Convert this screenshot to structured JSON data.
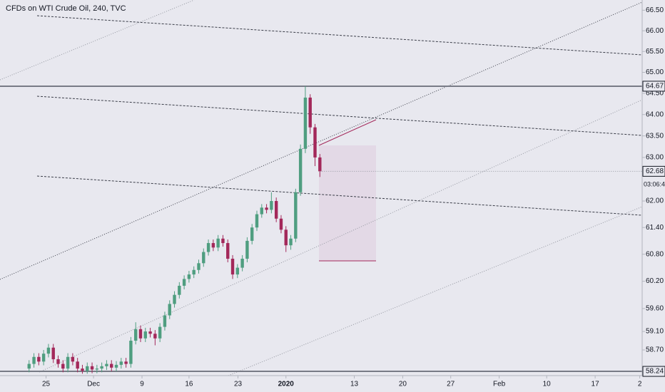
{
  "chart_data": {
    "type": "candlestick",
    "title": "CFDs on WTI Crude Oil, 240, TVC",
    "log_scale": true,
    "grid": false,
    "up_color": "#4f9e80",
    "down_color": "#a3285a",
    "xlim": [
      0,
      132.5
    ],
    "ylim": [
      58.18,
      66.75
    ],
    "xticks": [
      {
        "value": 9.5,
        "label": "25"
      },
      {
        "value": 19.3,
        "label": "Dec"
      },
      {
        "value": 29.3,
        "label": "9"
      },
      {
        "value": 39,
        "label": "16"
      },
      {
        "value": 49.1,
        "label": "23"
      },
      {
        "value": 59,
        "label": "2020"
      },
      {
        "value": 73.1,
        "label": "13"
      },
      {
        "value": 83.1,
        "label": "20"
      },
      {
        "value": 93,
        "label": "27"
      },
      {
        "value": 103,
        "label": "Feb"
      },
      {
        "value": 112.8,
        "label": "10"
      },
      {
        "value": 122.8,
        "label": "17"
      },
      {
        "value": 132,
        "label": "2"
      }
    ],
    "yticks": [
      {
        "value": 66.5,
        "label": "66.50"
      },
      {
        "value": 66,
        "label": "66.00"
      },
      {
        "value": 65.5,
        "label": "65.50"
      },
      {
        "value": 65,
        "label": "65.00"
      },
      {
        "value": 64.5,
        "label": "64.50"
      },
      {
        "value": 64,
        "label": "64.00"
      },
      {
        "value": 63.5,
        "label": "63.50"
      },
      {
        "value": 63,
        "label": "63.00"
      },
      {
        "value": 62,
        "label": "62.00"
      },
      {
        "value": 61.4,
        "label": "61.40"
      },
      {
        "value": 60.8,
        "label": "60.80"
      },
      {
        "value": 60.2,
        "label": "60.20"
      },
      {
        "value": 59.6,
        "label": "59.60"
      },
      {
        "value": 59.1,
        "label": "59.10"
      },
      {
        "value": 58.7,
        "label": "58.70"
      }
    ],
    "hlines": [
      64.67,
      58.24
    ],
    "hline_color": "#787b86",
    "countdown": "03:06:45",
    "x": [
      6,
      7,
      8,
      9,
      10,
      11,
      12,
      13,
      14,
      15,
      16,
      17,
      18,
      19,
      20,
      21,
      22,
      23,
      24,
      25,
      26,
      27,
      28,
      29,
      30,
      31,
      32,
      33,
      34,
      35,
      36,
      37,
      38,
      39,
      40,
      41,
      42,
      43,
      44,
      45,
      46,
      47,
      48,
      49,
      50,
      51,
      52,
      53,
      54,
      55,
      56,
      57,
      58,
      59,
      60,
      61,
      62,
      63,
      64,
      65,
      66
    ],
    "open": [
      58.3,
      58.4,
      58.55,
      58.45,
      58.62,
      58.75,
      58.5,
      58.4,
      58.3,
      58.55,
      58.45,
      58.3,
      58.25,
      58.35,
      58.28,
      58.3,
      58.35,
      58.4,
      58.32,
      58.38,
      58.45,
      58.4,
      58.9,
      59.15,
      58.95,
      59.1,
      59.05,
      58.95,
      59.2,
      59.45,
      59.7,
      59.9,
      60.1,
      60.25,
      60.35,
      60.45,
      60.6,
      60.85,
      61.05,
      60.95,
      61.15,
      61.05,
      60.7,
      60.35,
      60.5,
      60.7,
      61.1,
      61.4,
      61.7,
      61.85,
      61.8,
      62.0,
      61.6,
      61.35,
      61.0,
      61.15,
      62.2,
      63.2,
      64.4,
      63.7,
      63.0
    ],
    "high": [
      58.48,
      58.63,
      58.63,
      58.7,
      58.83,
      58.83,
      58.58,
      58.48,
      58.63,
      58.63,
      58.53,
      58.38,
      58.43,
      58.43,
      58.38,
      58.43,
      58.48,
      58.48,
      58.46,
      58.53,
      58.53,
      58.98,
      59.3,
      59.23,
      59.18,
      59.18,
      59.13,
      59.28,
      59.53,
      59.78,
      59.98,
      60.18,
      60.33,
      60.43,
      60.53,
      60.68,
      60.93,
      61.13,
      61.13,
      61.23,
      61.23,
      61.13,
      60.78,
      60.58,
      60.78,
      61.18,
      61.48,
      61.78,
      61.93,
      61.93,
      62.2,
      62.08,
      61.68,
      61.43,
      61.23,
      62.28,
      63.3,
      64.67,
      64.48,
      63.78,
      63.08
    ],
    "low": [
      58.22,
      58.32,
      58.37,
      58.37,
      58.54,
      58.42,
      58.32,
      58.22,
      58.22,
      58.37,
      58.22,
      58.19,
      58.19,
      58.2,
      58.2,
      58.22,
      58.27,
      58.24,
      58.24,
      58.3,
      58.32,
      58.32,
      58.82,
      58.87,
      58.87,
      58.97,
      58.8,
      58.87,
      59.12,
      59.37,
      59.62,
      59.82,
      60.02,
      60.17,
      60.27,
      60.37,
      60.52,
      60.77,
      60.87,
      60.87,
      60.97,
      60.62,
      60.25,
      60.27,
      60.42,
      60.62,
      61.02,
      61.32,
      61.62,
      61.72,
      61.72,
      61.52,
      61.27,
      60.85,
      60.9,
      61.07,
      62.12,
      63.1,
      63.55,
      62.8,
      62.55
    ],
    "close": [
      58.4,
      58.55,
      58.45,
      58.62,
      58.75,
      58.5,
      58.4,
      58.3,
      58.55,
      58.45,
      58.3,
      58.25,
      58.35,
      58.28,
      58.3,
      58.35,
      58.4,
      58.32,
      58.38,
      58.45,
      58.4,
      58.9,
      59.15,
      58.95,
      59.1,
      59.05,
      58.95,
      59.2,
      59.45,
      59.7,
      59.9,
      60.1,
      60.25,
      60.35,
      60.45,
      60.6,
      60.85,
      61.05,
      60.95,
      61.15,
      61.05,
      60.7,
      60.35,
      60.5,
      60.7,
      61.1,
      61.4,
      61.7,
      61.85,
      61.8,
      62.0,
      61.6,
      61.35,
      61.0,
      61.15,
      62.2,
      63.2,
      64.4,
      63.7,
      63.0,
      62.68
    ]
  }
}
